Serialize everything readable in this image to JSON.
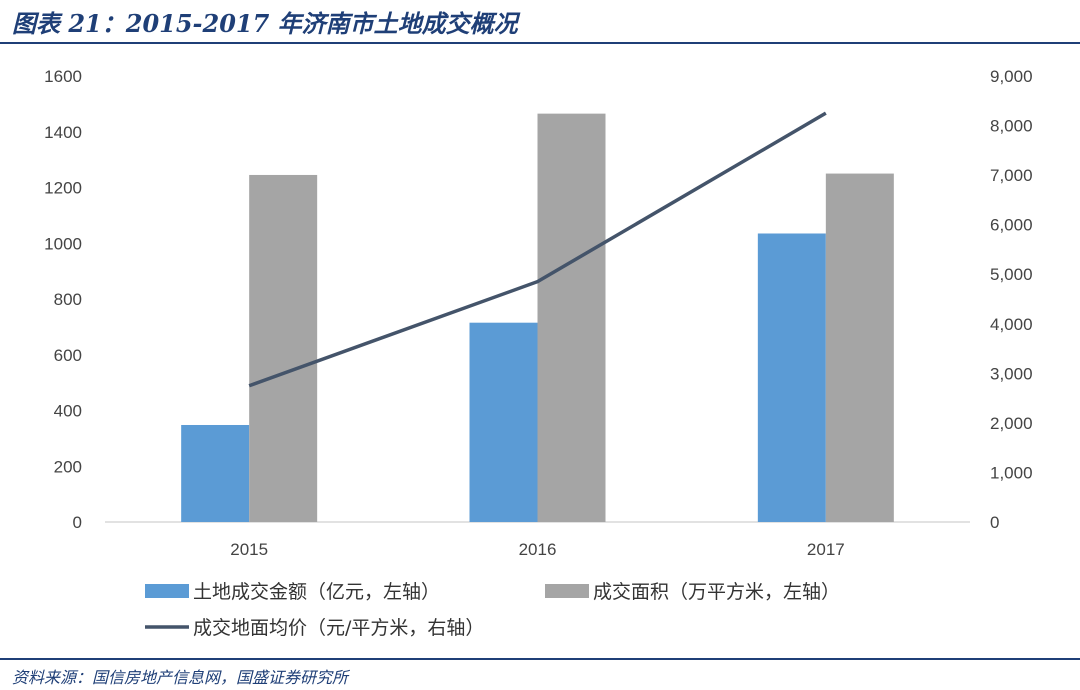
{
  "header": {
    "title": "图表 21：2015-2017 年济南市土地成交概况"
  },
  "footer": {
    "source": "资料来源：国信房地产信息网，国盛证券研究所"
  },
  "chart_data": {
    "type": "bar",
    "categories": [
      "2015",
      "2016",
      "2017"
    ],
    "series": [
      {
        "name": "土地成交金额（亿元，左轴）",
        "type": "bar",
        "axis": "left",
        "color": "#5b9bd5",
        "values": [
          348,
          715,
          1035
        ]
      },
      {
        "name": "成交面积（万平方米，左轴）",
        "type": "bar",
        "axis": "left",
        "color": "#a5a5a5",
        "values": [
          1245,
          1465,
          1250
        ]
      },
      {
        "name": "成交地面均价（元/平方米，右轴）",
        "type": "line",
        "axis": "right",
        "color": "#44546a",
        "values": [
          2750,
          4850,
          8250
        ]
      }
    ],
    "y_left": {
      "min": 0,
      "max": 1600,
      "ticks": [
        "0",
        "200",
        "400",
        "600",
        "800",
        "1000",
        "1200",
        "1400",
        "1600"
      ]
    },
    "y_right": {
      "min": 0,
      "max": 9000,
      "ticks": [
        "0",
        "1,000",
        "2,000",
        "3,000",
        "4,000",
        "5,000",
        "6,000",
        "7,000",
        "8,000",
        "9,000"
      ]
    },
    "grid": false,
    "legend_position": "bottom"
  }
}
